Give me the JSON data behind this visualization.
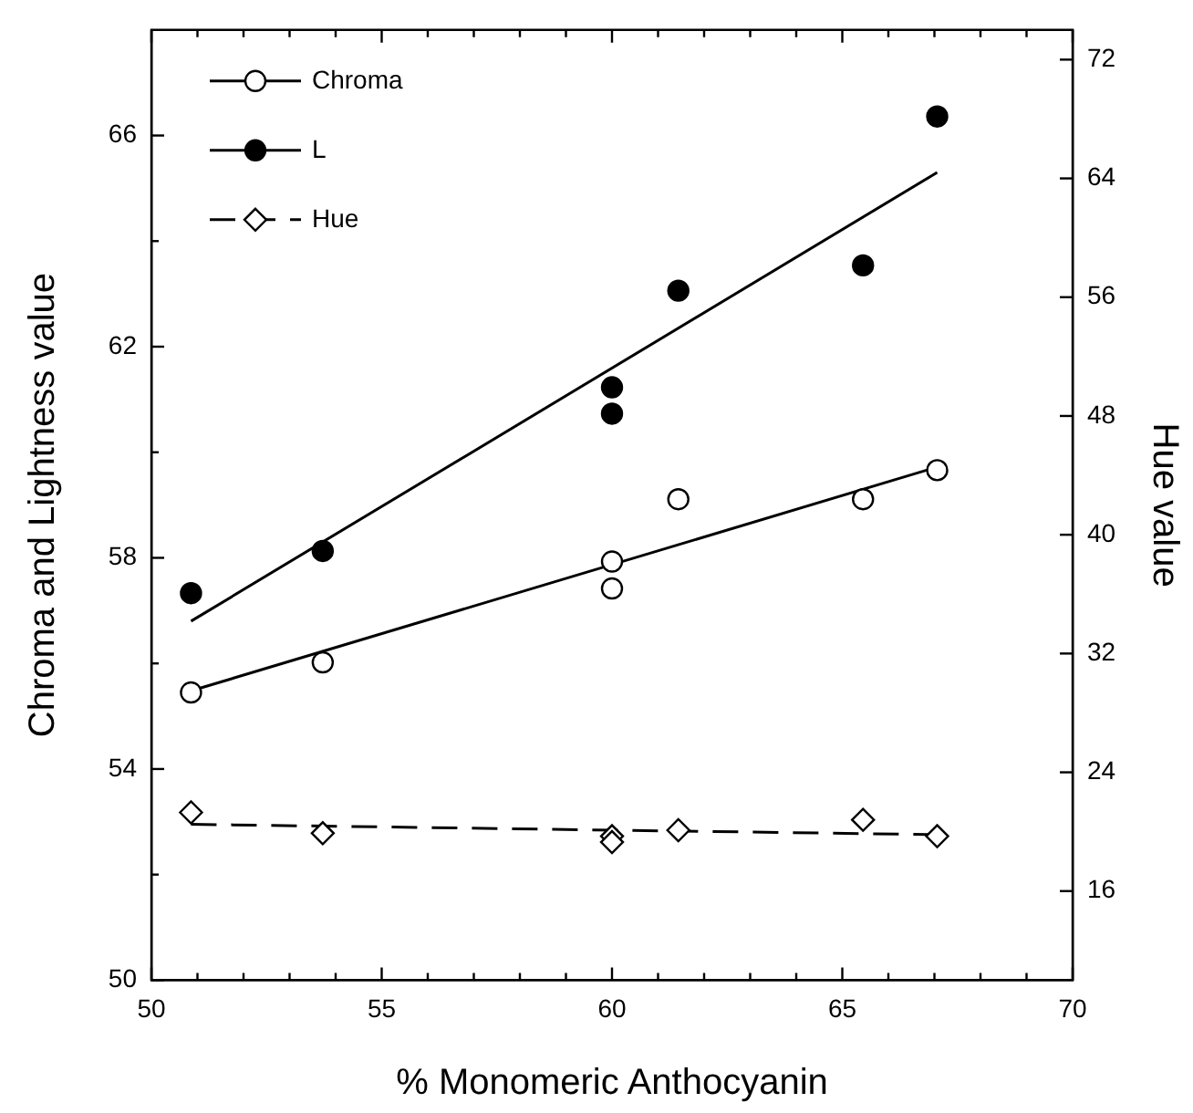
{
  "chart_data": {
    "type": "scatter",
    "xlabel": "% Monomeric Anthocyanin",
    "ylabel": "Chroma and Lightness value",
    "y2label": "Hue value",
    "xlim": [
      50,
      70
    ],
    "xticks": [
      50,
      {
        "value": 51,
        "label": null
      },
      {
        "value": 52,
        "label": null
      },
      {
        "value": 53,
        "label": null
      },
      {
        "value": 54,
        "label": null
      },
      55,
      {
        "value": 56,
        "label": null
      },
      {
        "value": 57,
        "label": null
      },
      {
        "value": 58,
        "label": null
      },
      {
        "value": 59,
        "label": null
      },
      60,
      {
        "value": 61,
        "label": null
      },
      {
        "value": 62,
        "label": null
      },
      {
        "value": 63,
        "label": null
      },
      {
        "value": 64,
        "label": null
      },
      65,
      {
        "value": 66,
        "label": null
      },
      {
        "value": 67,
        "label": null
      },
      {
        "value": 68,
        "label": null
      },
      {
        "value": 69,
        "label": null
      },
      70
    ],
    "ylim": [
      50,
      68
    ],
    "yticks": [
      50,
      {
        "value": 52,
        "label": null
      },
      54,
      {
        "value": 56,
        "label": null
      },
      58,
      {
        "value": 60,
        "label": null
      },
      62,
      {
        "value": 64,
        "label": null
      },
      66
    ],
    "y2lim": [
      10,
      74
    ],
    "y2ticks": [
      16,
      24,
      32,
      40,
      48,
      56,
      64,
      72
    ],
    "grid": false,
    "legend": "top left",
    "series": [
      {
        "name": "Chroma",
        "marker": "circle",
        "line_style": "solid",
        "color": "#ffffff",
        "x": [
          50.86,
          53.72,
          60.0,
          60.0,
          61.44,
          65.45,
          67.06
        ],
        "values": [
          55.45,
          56.02,
          57.93,
          57.42,
          59.11,
          59.11,
          59.66
        ]
      },
      {
        "name": "L",
        "marker": "circle",
        "line_style": "solid",
        "color": "#000000",
        "x": [
          50.86,
          53.72,
          60.0,
          60.0,
          61.44,
          65.45,
          67.06
        ],
        "values": [
          57.33,
          58.13,
          61.23,
          60.73,
          63.06,
          63.54,
          66.36
        ]
      },
      {
        "name": "Hue",
        "marker": "diamond",
        "line_style": "dashed",
        "axis": "y2",
        "color": "#ffffff",
        "x": [
          50.86,
          53.72,
          60.0,
          60.0,
          61.44,
          65.45,
          67.06
        ],
        "values": [
          21.3,
          19.9,
          19.7,
          19.3,
          20.1,
          20.8,
          19.7
        ]
      },
      {
        "type": "line",
        "line_style": "solid",
        "color": "#000000",
        "x": [
          50.86,
          67.06
        ],
        "values": [
          55.48,
          59.72
        ]
      },
      {
        "type": "line",
        "line_style": "solid",
        "color": "#000000",
        "x": [
          50.86,
          67.06
        ],
        "values": [
          56.8,
          65.3
        ]
      },
      {
        "type": "line",
        "line_style": "dashed",
        "axis": "y2",
        "color": "#000000",
        "x": [
          50.86,
          67.06
        ],
        "values": [
          20.5,
          19.8
        ]
      }
    ]
  }
}
